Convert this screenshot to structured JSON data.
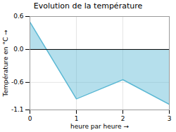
{
  "chart_data": {
    "type": "area",
    "title": "Evolution de la température",
    "xlabel": "heure par heure",
    "ylabel": "Température en °C",
    "x": [
      0,
      1,
      2,
      3
    ],
    "values": [
      0.5,
      -0.9,
      -0.55,
      -1.0
    ],
    "color": "#5bb8d4",
    "xlim": [
      0,
      3
    ],
    "xticks": [
      0,
      1,
      2,
      3
    ],
    "ylim": [
      -1.1,
      0.6
    ],
    "yticks": [
      -1.1,
      -0.6,
      {
        "value": 0,
        "label": "0.0"
      },
      0.6
    ],
    "grid": true
  }
}
